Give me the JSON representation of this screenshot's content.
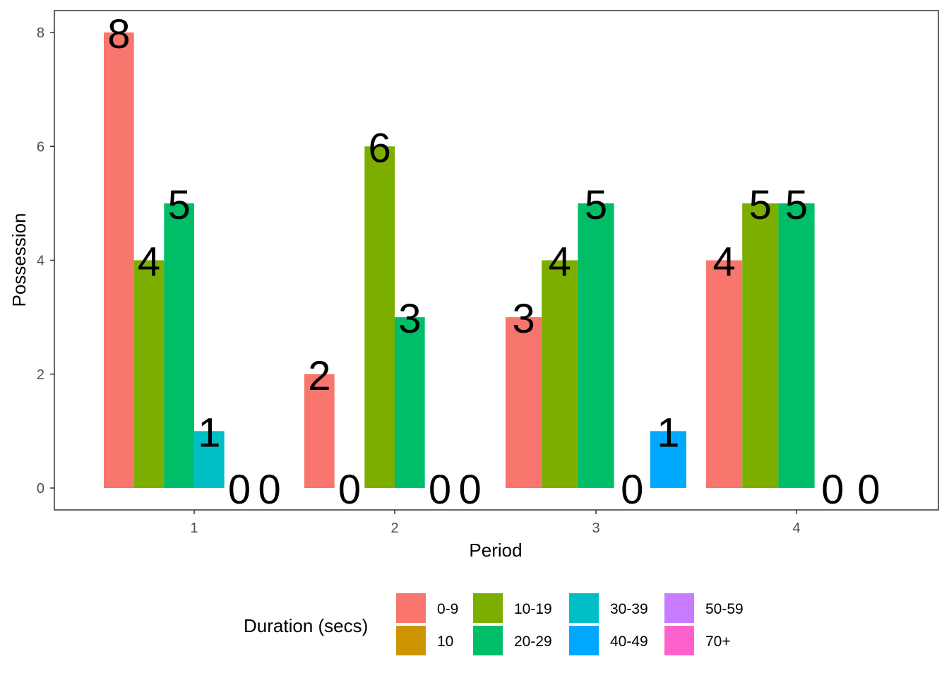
{
  "chart_data": {
    "type": "bar",
    "xlabel": "Period",
    "ylabel": "Possession",
    "ylim": [
      0,
      8
    ],
    "yticks": [
      "0",
      "2",
      "4",
      "6",
      "8"
    ],
    "categories": [
      "1",
      "2",
      "3",
      "4"
    ],
    "legend": {
      "title": "Duration (secs)",
      "placement": "bottom",
      "entries": [
        {
          "name": "0-9",
          "color": "#F8766D"
        },
        {
          "name": "10",
          "color": "#CD9600"
        },
        {
          "name": "10-19",
          "color": "#7CAE00"
        },
        {
          "name": "20-29",
          "color": "#00BE67"
        },
        {
          "name": "30-39",
          "color": "#00BFC4"
        },
        {
          "name": "40-49",
          "color": "#00A9FF"
        },
        {
          "name": "50-59",
          "color": "#C77CFF"
        },
        {
          "name": "70+",
          "color": "#FF61CC"
        }
      ]
    },
    "groups": [
      {
        "period": "1",
        "bars": [
          {
            "duration": "0-9",
            "value": 8,
            "label": "8"
          },
          {
            "duration": "10-19",
            "value": 4,
            "label": "4"
          },
          {
            "duration": "20-29",
            "value": 5,
            "label": "5"
          },
          {
            "duration": "30-39",
            "value": 1,
            "label": "1"
          },
          {
            "duration": "",
            "value": 0,
            "label": "0"
          },
          {
            "duration": "",
            "value": 0,
            "label": "0"
          }
        ]
      },
      {
        "period": "2",
        "bars": [
          {
            "duration": "0-9",
            "value": 2,
            "label": "2"
          },
          {
            "duration": "",
            "value": 0,
            "label": "0"
          },
          {
            "duration": "10-19",
            "value": 6,
            "label": "6"
          },
          {
            "duration": "20-29",
            "value": 3,
            "label": "3"
          },
          {
            "duration": "",
            "value": 0,
            "label": "0"
          },
          {
            "duration": "",
            "value": 0,
            "label": "0"
          }
        ]
      },
      {
        "period": "3",
        "bars": [
          {
            "duration": "0-9",
            "value": 3,
            "label": "3"
          },
          {
            "duration": "10-19",
            "value": 4,
            "label": "4"
          },
          {
            "duration": "20-29",
            "value": 5,
            "label": "5"
          },
          {
            "duration": "",
            "value": 0,
            "label": "0"
          },
          {
            "duration": "40-49",
            "value": 1,
            "label": "1"
          }
        ]
      },
      {
        "period": "4",
        "bars": [
          {
            "duration": "0-9",
            "value": 4,
            "label": "4"
          },
          {
            "duration": "10-19",
            "value": 5,
            "label": "5"
          },
          {
            "duration": "20-29",
            "value": 5,
            "label": "5"
          },
          {
            "duration": "",
            "value": 0,
            "label": "0"
          },
          {
            "duration": "",
            "value": 0,
            "label": "0"
          }
        ]
      }
    ]
  }
}
